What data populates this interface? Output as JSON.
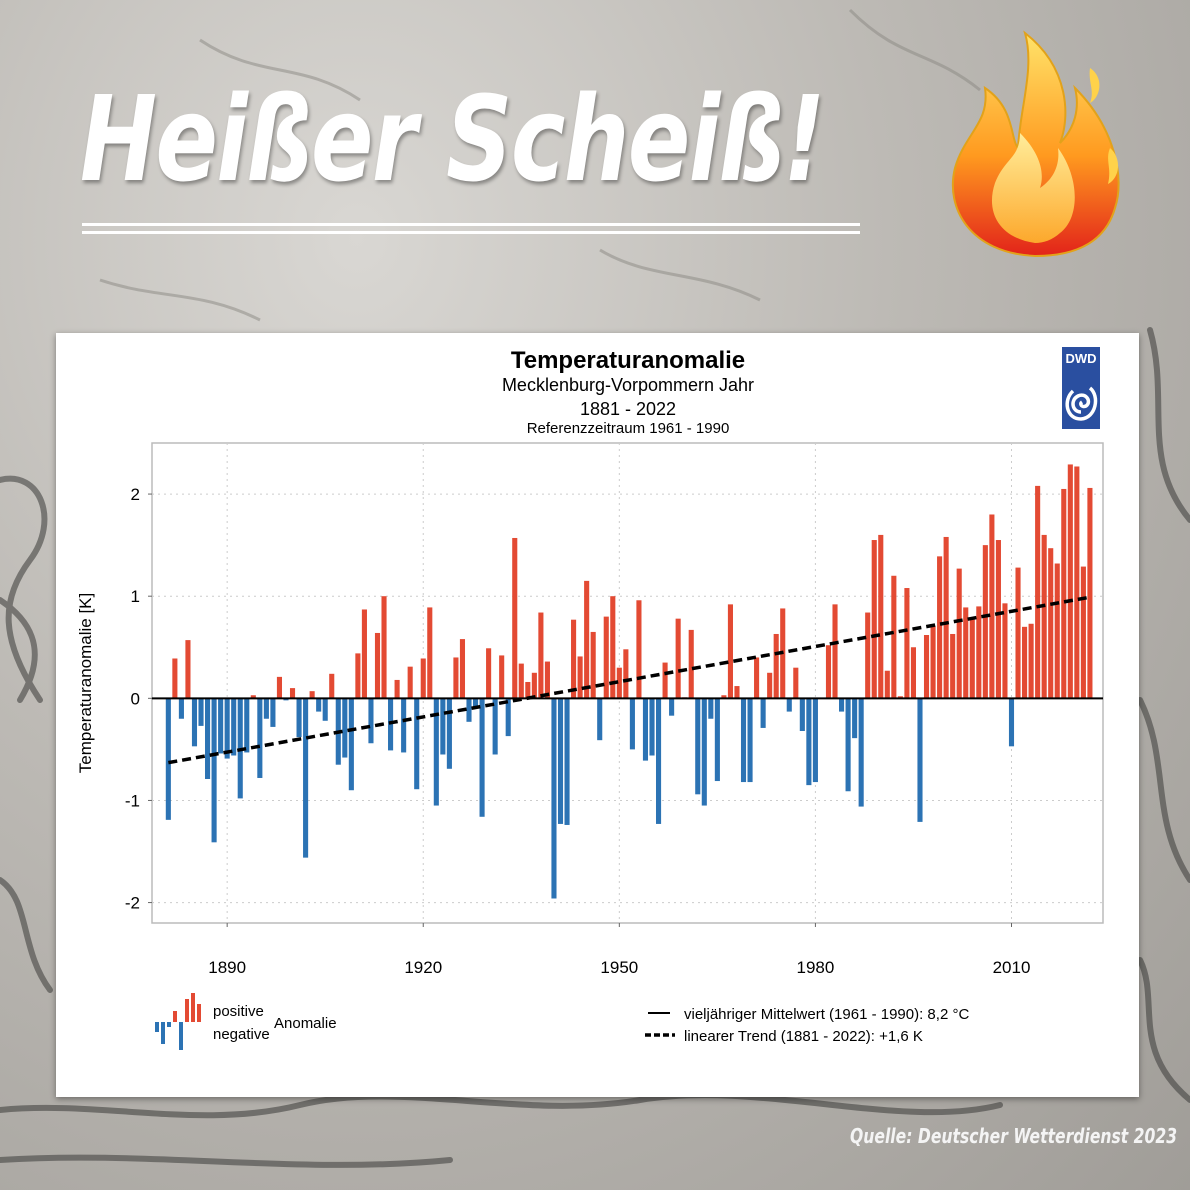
{
  "headline": "Heißer Scheiß!",
  "source": "Quelle: Deutscher Wetterdienst 2023",
  "logo": "DWD",
  "colors": {
    "positive": "#e34a33",
    "negative": "#2c73b4",
    "trend": "#000000"
  },
  "chart_data": {
    "type": "bar",
    "title": "Temperaturanomalie",
    "subtitle": "Mecklenburg-Vorpommern Jahr",
    "period": "1881 - 2022",
    "reference": "Referenzzeitraum 1961 - 1990",
    "ylabel": "Temperaturanomalie [K]",
    "xlabel": "",
    "ylim": [
      -2.2,
      2.5
    ],
    "xlim": [
      1878.5,
      2024
    ],
    "yticks": [
      "-2",
      "-1",
      "0",
      "1",
      "2"
    ],
    "xticks": [
      "1890",
      "1920",
      "1950",
      "1980",
      "2010"
    ],
    "grid": true,
    "x_start": 1881,
    "values": [
      -1.19,
      0.39,
      -0.2,
      0.57,
      -0.47,
      -0.27,
      -0.79,
      -1.41,
      -0.54,
      -0.59,
      -0.56,
      -0.98,
      -0.53,
      0.03,
      -0.78,
      -0.2,
      -0.28,
      0.21,
      -0.02,
      0.1,
      -0.38,
      -1.56,
      0.07,
      -0.13,
      -0.22,
      0.24,
      -0.65,
      -0.58,
      -0.9,
      0.44,
      0.87,
      -0.44,
      0.64,
      1.0,
      -0.51,
      0.18,
      -0.53,
      0.31,
      -0.89,
      0.39,
      0.89,
      -1.05,
      -0.55,
      -0.69,
      0.4,
      0.58,
      -0.23,
      -0.1,
      -1.16,
      0.49,
      -0.55,
      0.42,
      -0.37,
      1.57,
      0.34,
      0.16,
      0.25,
      0.84,
      0.36,
      -1.96,
      -1.23,
      -1.24,
      0.77,
      0.41,
      1.15,
      0.65,
      -0.41,
      0.8,
      1.0,
      0.3,
      0.48,
      -0.5,
      0.96,
      -0.61,
      -0.56,
      -1.23,
      0.35,
      -0.17,
      0.78,
      0.01,
      0.67,
      -0.94,
      -1.05,
      -0.2,
      -0.81,
      0.03,
      0.92,
      0.12,
      -0.82,
      -0.82,
      0.4,
      -0.29,
      0.25,
      0.63,
      0.88,
      -0.13,
      0.3,
      -0.32,
      -0.85,
      -0.82,
      0.0,
      0.52,
      0.92,
      -0.13,
      -0.91,
      -0.39,
      -1.06,
      0.84,
      1.55,
      1.6,
      0.27,
      1.2,
      0.02,
      1.08,
      0.5,
      -1.21,
      0.62,
      0.71,
      1.39,
      1.58,
      0.63,
      1.27,
      0.89,
      0.79,
      0.9,
      1.5,
      1.8,
      1.55,
      0.93,
      -0.47,
      1.28,
      0.7,
      0.73,
      2.08,
      1.6,
      1.47,
      1.32,
      2.05,
      2.29,
      2.27,
      1.29,
      2.06
    ],
    "mean_line": {
      "value": 0,
      "label": "vieljähriger Mittelwert (1961 - 1990): 8,2 °C"
    },
    "trend": {
      "start": [
        1881,
        -0.63
      ],
      "end": [
        2022,
        0.99
      ],
      "label": "linearer Trend (1881 - 2022): +1,6 K"
    },
    "legend": {
      "positive": "positive",
      "negative": "negative",
      "anomaly": "Anomalie",
      "placement": "bottom"
    }
  }
}
